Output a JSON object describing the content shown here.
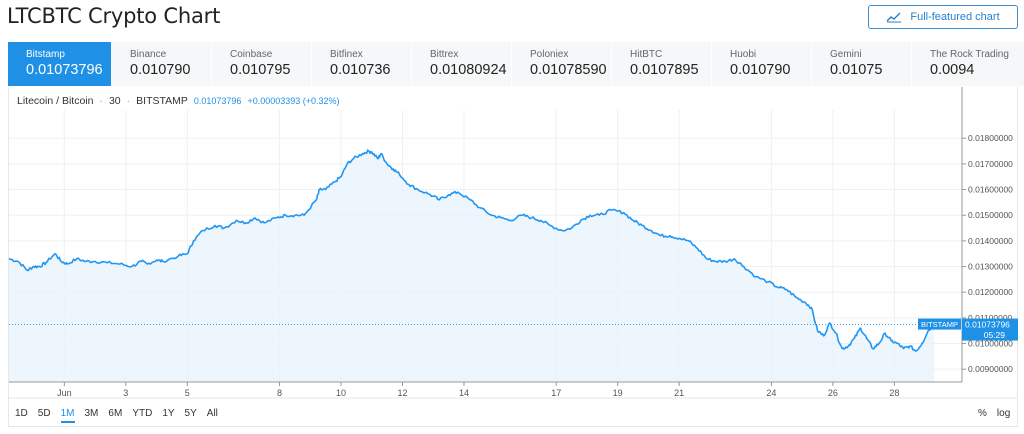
{
  "page": {
    "title": "LTCBTC Crypto Chart"
  },
  "toolbar": {
    "full_chart_label": "Full-featured chart",
    "full_chart_icon": "chart-line-icon"
  },
  "exchanges": [
    {
      "name": "Bitstamp",
      "price": "0.01073796",
      "active": true
    },
    {
      "name": "Binance",
      "price": "0.010790"
    },
    {
      "name": "Coinbase",
      "price": "0.010795"
    },
    {
      "name": "Bitfinex",
      "price": "0.010736"
    },
    {
      "name": "Bittrex",
      "price": "0.01080924"
    },
    {
      "name": "Poloniex",
      "price": "0.01078590"
    },
    {
      "name": "HitBTC",
      "price": "0.0107895"
    },
    {
      "name": "Huobi",
      "price": "0.010790"
    },
    {
      "name": "Gemini",
      "price": "0.01075"
    },
    {
      "name": "The Rock Trading",
      "price": "0.0094"
    }
  ],
  "legend": {
    "symbol": "Litecoin / Bitcoin",
    "interval": "30",
    "exchange": "BITSTAMP",
    "last_price": "0.01073796",
    "change": "+0.00003393 (+0.32%)"
  },
  "ranges": [
    {
      "label": "1D"
    },
    {
      "label": "5D"
    },
    {
      "label": "1M",
      "active": true
    },
    {
      "label": "3M"
    },
    {
      "label": "6M"
    },
    {
      "label": "YTD"
    },
    {
      "label": "1Y"
    },
    {
      "label": "5Y"
    },
    {
      "label": "All"
    }
  ],
  "scale_options": {
    "percent": "%",
    "log": "log"
  },
  "price_badge": {
    "exchange": "BITSTAMP",
    "price": "0.01073796",
    "countdown": "05:29"
  },
  "colors": {
    "accent": "#1e90e6",
    "line": "#2196f3",
    "fill": "#e8f3fc"
  },
  "chart_data": {
    "type": "area",
    "x_tick_labels": [
      "Jun",
      "3",
      "5",
      "8",
      "10",
      "12",
      "14",
      "17",
      "19",
      "21",
      "24",
      "26",
      "28"
    ],
    "y_tick_labels": [
      "0.01800000",
      "0.01700000",
      "0.01600000",
      "0.01500000",
      "0.01400000",
      "0.01300000",
      "0.01200000",
      "0.01100000",
      "0.01000000",
      "0.00900000"
    ],
    "ylim": [
      0.0085,
      0.0191
    ],
    "x": [
      0,
      0.3,
      0.6,
      0.8,
      1.0,
      1.2,
      1.5,
      1.7,
      1.9,
      2.2,
      2.5,
      2.8,
      3.2,
      3.6,
      4.0,
      4.3,
      4.5,
      4.8,
      5.0,
      5.5,
      5.8,
      6.0,
      6.3,
      6.7,
      7.0,
      7.4,
      7.7,
      8.0,
      8.3,
      8.7,
      9.0,
      9.3,
      9.6,
      10.0,
      10.1,
      10.3,
      10.6,
      10.8,
      11.0,
      11.2,
      11.5,
      11.7,
      11.8,
      12.0,
      12.1,
      12.3,
      12.5,
      12.7,
      13.0,
      13.3,
      13.7,
      14.0,
      14.3,
      14.6,
      15.0,
      15.3,
      15.7,
      16.0,
      16.3,
      16.7,
      17.0,
      17.3,
      17.6,
      18.0,
      18.3,
      18.6,
      18.9,
      19.2,
      19.6,
      20.0,
      20.3,
      20.6,
      20.9,
      21.2,
      21.5,
      21.8,
      22.1,
      22.4,
      22.7,
      23.0,
      23.3,
      23.6,
      23.9,
      24.3,
      24.7,
      25.0,
      25.3,
      25.6,
      25.9,
      26.1,
      26.3,
      26.5,
      26.7,
      26.9,
      27.1,
      27.3,
      27.5,
      27.7,
      27.9,
      28.1,
      28.3,
      28.5,
      28.7,
      28.9,
      29.1,
      29.3,
      29.5,
      29.7,
      29.9,
      30.1
    ],
    "series": [
      {
        "values": [
          0.0133,
          0.0132,
          0.01285,
          0.013,
          0.013,
          0.01315,
          0.0135,
          0.0132,
          0.0131,
          0.0133,
          0.0132,
          0.0132,
          0.01315,
          0.0131,
          0.013,
          0.0132,
          0.0131,
          0.01325,
          0.0132,
          0.0134,
          0.0135,
          0.014,
          0.0144,
          0.0146,
          0.0145,
          0.0148,
          0.0147,
          0.0149,
          0.0147,
          0.0149,
          0.015,
          0.015,
          0.015,
          0.0156,
          0.016,
          0.016,
          0.0163,
          0.0165,
          0.017,
          0.0172,
          0.0174,
          0.0175,
          0.01745,
          0.0172,
          0.0174,
          0.017,
          0.0168,
          0.0166,
          0.0162,
          0.016,
          0.0158,
          0.0156,
          0.0158,
          0.0159,
          0.0156,
          0.0153,
          0.015,
          0.0149,
          0.0148,
          0.015,
          0.0149,
          0.0148,
          0.0146,
          0.0144,
          0.0145,
          0.0148,
          0.015,
          0.015,
          0.0152,
          0.0151,
          0.0148,
          0.0146,
          0.0144,
          0.0142,
          0.0142,
          0.0141,
          0.014,
          0.0137,
          0.0133,
          0.0132,
          0.0132,
          0.0133,
          0.013,
          0.0126,
          0.0124,
          0.0122,
          0.0121,
          0.0118,
          0.0116,
          0.0114,
          0.0105,
          0.0103,
          0.0108,
          0.0104,
          0.0098,
          0.0099,
          0.0102,
          0.0106,
          0.0102,
          0.0098,
          0.01,
          0.0104,
          0.0101,
          0.01,
          0.0098,
          0.0099,
          0.0097,
          0.01,
          0.0105,
          0.01074
        ]
      }
    ],
    "grid": true,
    "last_value": 0.01073796
  }
}
